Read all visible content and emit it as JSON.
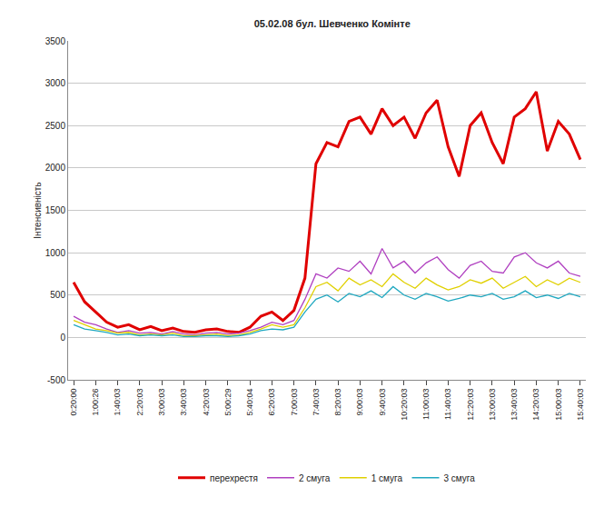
{
  "chart_data": {
    "type": "line",
    "title": "05.02.08 бул. Шевченко Комінте",
    "y_label": "Інтенсивність",
    "categories": [
      "0:20:00",
      null,
      "1:00:26",
      null,
      "1:40:03",
      null,
      "2:20:03",
      null,
      "3:00:03",
      null,
      "3:40:03",
      null,
      "4:20:03",
      null,
      "5:00:29",
      null,
      "5:40:04",
      null,
      "6:20:03",
      null,
      "7:00:03",
      null,
      "7:40:03",
      null,
      "8:20:03",
      null,
      "9:00:03",
      null,
      "9:40:03",
      null,
      "10:20:03",
      null,
      "11:00:03",
      null,
      "11:40:03",
      null,
      "12:20:03",
      null,
      "13:00:03",
      null,
      "13:40:03",
      null,
      "14:20:03",
      null,
      "15:00:03",
      null,
      "15:40:03"
    ],
    "series": [
      {
        "name": "перехрестя",
        "color": "#e00000",
        "values": [
          650,
          420,
          300,
          180,
          120,
          150,
          90,
          130,
          80,
          110,
          70,
          60,
          90,
          100,
          70,
          60,
          120,
          250,
          300,
          200,
          320,
          700,
          2050,
          2300,
          2250,
          2550,
          2600,
          2400,
          2700,
          2500,
          2600,
          2350,
          2650,
          2800,
          2250,
          1900,
          2500,
          2650,
          2300,
          2050,
          2600,
          2700,
          2900,
          2200,
          2550,
          2400,
          2100
        ]
      },
      {
        "name": "2 смуга",
        "color": "#b040c0",
        "values": [
          250,
          180,
          150,
          100,
          60,
          80,
          50,
          60,
          40,
          70,
          40,
          30,
          50,
          60,
          40,
          50,
          80,
          120,
          180,
          150,
          200,
          450,
          750,
          700,
          820,
          780,
          900,
          750,
          1050,
          820,
          900,
          760,
          880,
          950,
          800,
          700,
          850,
          900,
          780,
          760,
          950,
          1000,
          880,
          820,
          900,
          760,
          720
        ]
      },
      {
        "name": "1 смуга",
        "color": "#e0d000",
        "values": [
          200,
          150,
          100,
          80,
          50,
          60,
          30,
          40,
          30,
          50,
          20,
          20,
          30,
          40,
          20,
          30,
          60,
          100,
          150,
          120,
          150,
          350,
          600,
          650,
          550,
          700,
          620,
          680,
          600,
          750,
          650,
          580,
          700,
          620,
          560,
          600,
          680,
          640,
          700,
          580,
          650,
          720,
          600,
          680,
          620,
          700,
          650
        ]
      },
      {
        "name": "3 смуга",
        "color": "#20a8c0",
        "values": [
          150,
          100,
          80,
          60,
          30,
          40,
          20,
          30,
          20,
          30,
          10,
          10,
          20,
          20,
          10,
          20,
          40,
          80,
          100,
          90,
          120,
          300,
          450,
          500,
          420,
          520,
          480,
          550,
          470,
          600,
          500,
          450,
          520,
          480,
          430,
          460,
          500,
          480,
          520,
          450,
          480,
          550,
          470,
          500,
          460,
          520,
          480
        ]
      }
    ],
    "ylim": [
      -500,
      3500
    ],
    "yticks": [
      -500,
      0,
      500,
      1000,
      1500,
      2000,
      2500,
      3000,
      3500
    ],
    "grid": true,
    "legend": "bottom"
  }
}
